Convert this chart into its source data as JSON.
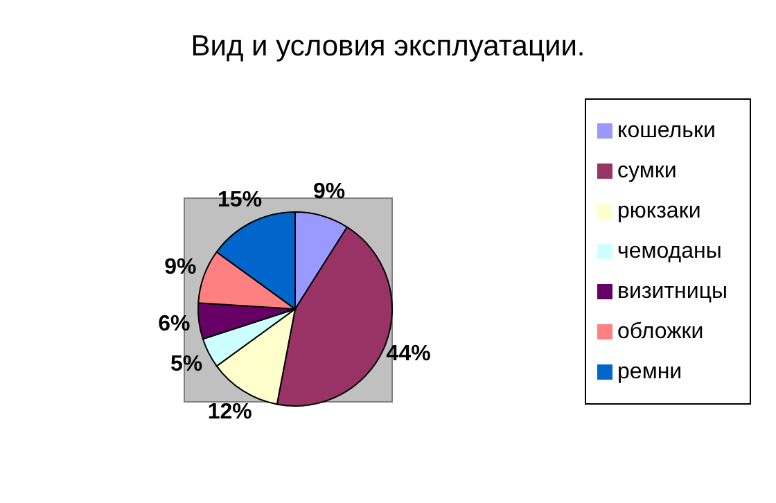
{
  "chart_data": {
    "type": "pie",
    "title": "Вид и условия эксплуатации.",
    "categories": [
      "кошельки",
      "сумки",
      "рюкзаки",
      "чемоданы",
      "визитницы",
      "обложки",
      "ремни"
    ],
    "values": [
      9,
      44,
      12,
      5,
      6,
      9,
      15
    ],
    "colors": [
      "#9999ff",
      "#993366",
      "#ffffcc",
      "#ccffff",
      "#660066",
      "#ff8080",
      "#0066cc"
    ],
    "value_labels": [
      "9%",
      "44%",
      "12%",
      "5%",
      "6%",
      "9%",
      "15%"
    ],
    "legend": "right"
  }
}
